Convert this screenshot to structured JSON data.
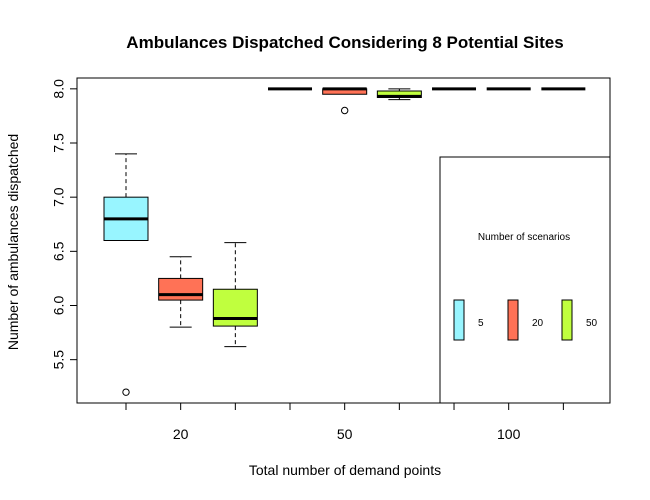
{
  "chart_data": {
    "type": "boxplot",
    "title": "Ambulances Dispatched Considering 8 Potential Sites",
    "xlabel": "Total number of demand points",
    "ylabel": "Number of ambulances dispatched",
    "ylim": [
      5.1,
      8.1
    ],
    "yticks": [
      5.5,
      6.0,
      6.5,
      7.0,
      7.5,
      8.0
    ],
    "ytick_labels": [
      "5.5",
      "6.0",
      "6.5",
      "7.0",
      "7.5",
      "8.0"
    ],
    "groups": [
      "20",
      "50",
      "100"
    ],
    "legend": {
      "title": "Number of scenarios",
      "placement": "bottom-right",
      "entries": [
        {
          "label": "5",
          "color": "#98F5FF"
        },
        {
          "label": "20",
          "color": "#FF7256"
        },
        {
          "label": "50",
          "color": "#C0FF3E"
        }
      ]
    },
    "boxes": [
      {
        "group": "20",
        "scenarios": "5",
        "color": "#98F5FF",
        "whisker_low": 6.6,
        "q1": 6.6,
        "median": 6.8,
        "q3": 7.0,
        "whisker_high": 7.4,
        "outliers": [
          5.2
        ]
      },
      {
        "group": "20",
        "scenarios": "20",
        "color": "#FF7256",
        "whisker_low": 5.8,
        "q1": 6.05,
        "median": 6.1,
        "q3": 6.25,
        "whisker_high": 6.45,
        "outliers": []
      },
      {
        "group": "20",
        "scenarios": "50",
        "color": "#C0FF3E",
        "whisker_low": 5.62,
        "q1": 5.81,
        "median": 5.88,
        "q3": 6.15,
        "whisker_high": 6.58,
        "outliers": []
      },
      {
        "group": "50",
        "scenarios": "5",
        "color": "#98F5FF",
        "whisker_low": 8.0,
        "q1": 8.0,
        "median": 8.0,
        "q3": 8.0,
        "whisker_high": 8.0,
        "outliers": []
      },
      {
        "group": "50",
        "scenarios": "20",
        "color": "#FF7256",
        "whisker_low": 7.95,
        "q1": 7.95,
        "median": 8.0,
        "q3": 8.0,
        "whisker_high": 8.0,
        "outliers": [
          7.8
        ]
      },
      {
        "group": "50",
        "scenarios": "50",
        "color": "#C0FF3E",
        "whisker_low": 7.9,
        "q1": 7.92,
        "median": 7.93,
        "q3": 7.98,
        "whisker_high": 8.0,
        "outliers": []
      },
      {
        "group": "100",
        "scenarios": "5",
        "color": "#98F5FF",
        "whisker_low": 8.0,
        "q1": 8.0,
        "median": 8.0,
        "q3": 8.0,
        "whisker_high": 8.0,
        "outliers": []
      },
      {
        "group": "100",
        "scenarios": "20",
        "color": "#FF7256",
        "whisker_low": 8.0,
        "q1": 8.0,
        "median": 8.0,
        "q3": 8.0,
        "whisker_high": 8.0,
        "outliers": []
      },
      {
        "group": "100",
        "scenarios": "50",
        "color": "#C0FF3E",
        "whisker_low": 8.0,
        "q1": 8.0,
        "median": 8.0,
        "q3": 8.0,
        "whisker_high": 8.0,
        "outliers": []
      }
    ]
  }
}
